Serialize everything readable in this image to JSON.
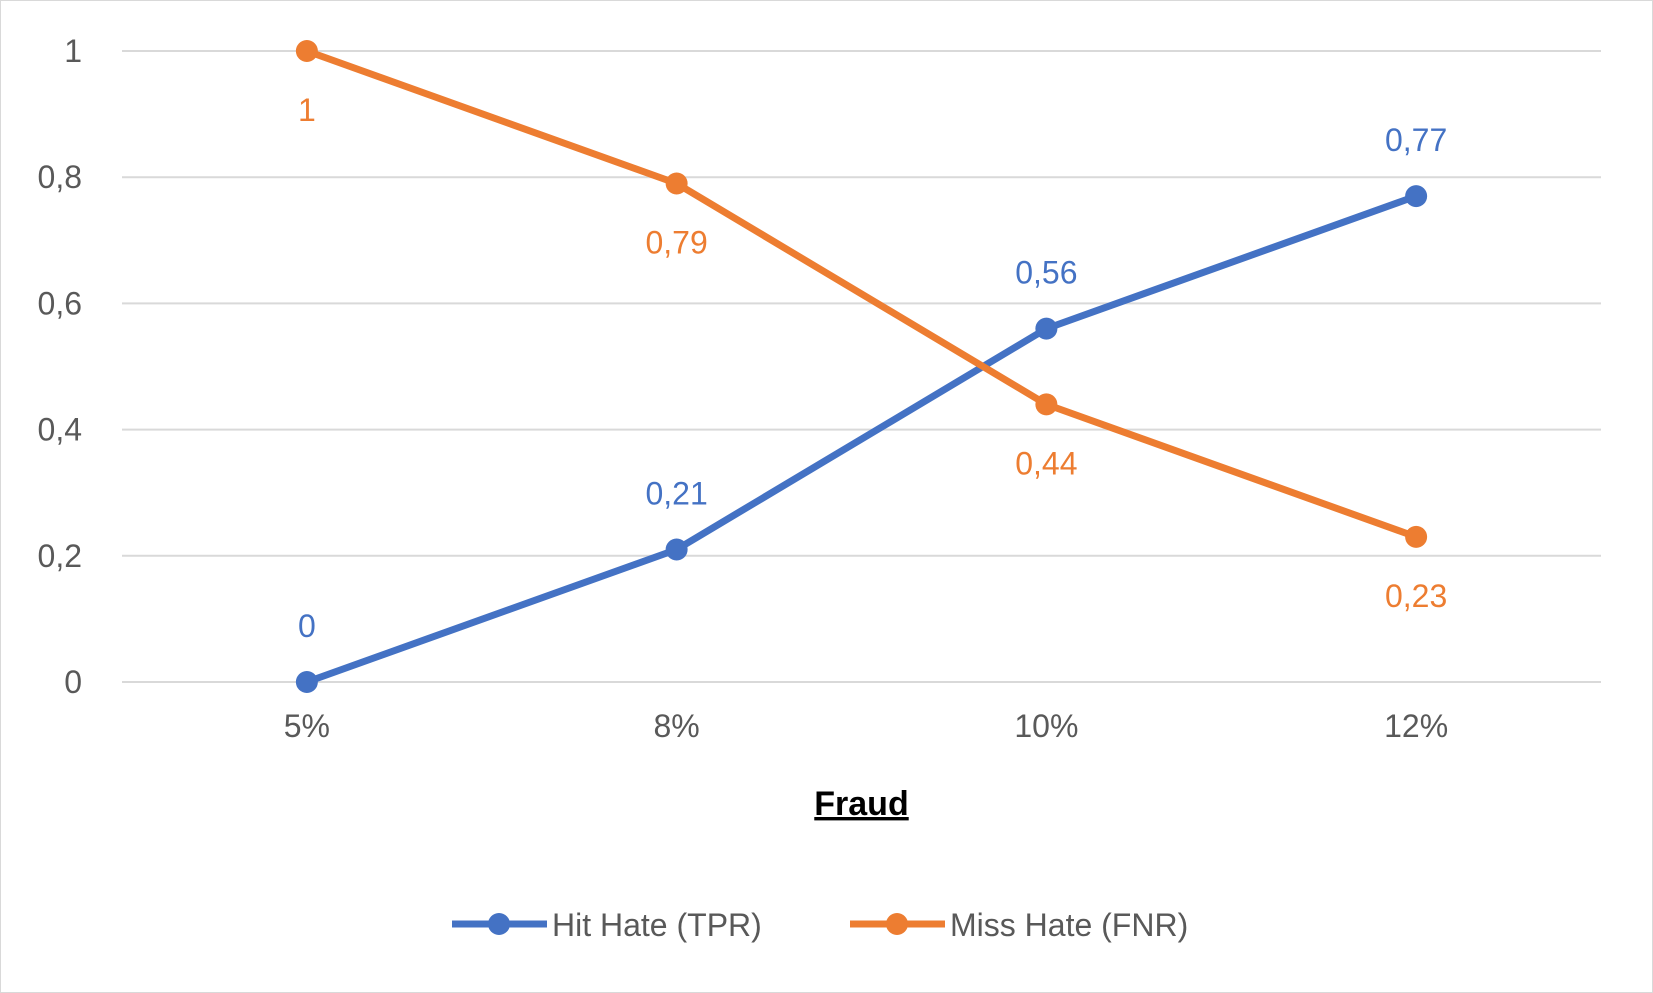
{
  "chart_data": {
    "type": "line",
    "categories": [
      "5%",
      "8%",
      "10%",
      "12%"
    ],
    "series": [
      {
        "name": "Hit Hate (TPR)",
        "values": [
          0,
          0.21,
          0.56,
          0.77
        ],
        "labels": [
          "0",
          "0,21",
          "0,56",
          "0,77"
        ],
        "color": "#4472C4",
        "label_position": "above"
      },
      {
        "name": "Miss Hate (FNR)",
        "values": [
          1,
          0.79,
          0.44,
          0.23
        ],
        "labels": [
          "1",
          "0,79",
          "0,44",
          "0,23"
        ],
        "color": "#ED7D31",
        "label_position": "below"
      }
    ],
    "xlabel": "Fraud",
    "ylabel": "",
    "ylim": [
      0,
      1
    ],
    "yticks": [
      0,
      0.2,
      0.4,
      0.6,
      0.8,
      1
    ],
    "ytick_labels": [
      "0",
      "0,2",
      "0,4",
      "0,6",
      "0,8",
      "1"
    ],
    "grid": true,
    "legend_position": "bottom",
    "colors": {
      "gridline": "#d9d9d9",
      "tick_text": "#595959"
    }
  }
}
